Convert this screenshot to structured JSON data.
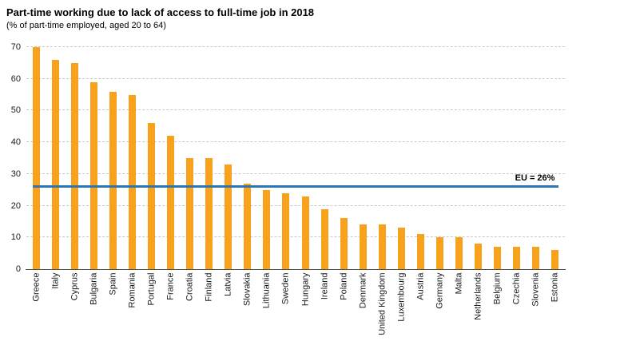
{
  "header": {
    "title": "Part-time working due to lack of access to full-time job in 2018",
    "subtitle": "(% of part-time employed, aged 20 to 64)"
  },
  "chart_data": {
    "type": "bar",
    "title": "Part-time working due to lack of access to full-time job in 2018",
    "subtitle": "(% of part-time employed, aged 20 to 64)",
    "categories": [
      "Greece",
      "Italy",
      "Cyprus",
      "Bulgaria",
      "Spain",
      "Romania",
      "Portugal",
      "France",
      "Croatia",
      "Finland",
      "Latvia",
      "Slovakia",
      "Lithuania",
      "Sweden",
      "Hungary",
      "Ireland",
      "Poland",
      "Denmark",
      "United Kingdom",
      "Luxembourg",
      "Austria",
      "Germany",
      "Malta",
      "Netherlands",
      "Belgium",
      "Czechia",
      "Slovenia",
      "Estonia"
    ],
    "values": [
      70,
      66,
      65,
      59,
      56,
      55,
      46,
      42,
      35,
      35,
      33,
      27,
      25,
      24,
      23,
      19,
      16,
      14,
      14,
      13,
      11,
      10,
      10,
      8,
      7,
      7,
      7,
      6
    ],
    "xlabel": "",
    "ylabel": "",
    "ylim": [
      0,
      70
    ],
    "yticks": [
      0,
      10,
      20,
      30,
      40,
      50,
      60,
      70
    ],
    "grid": "horizontal-dashed",
    "legend": "none",
    "bar_color": "#F8A11D",
    "reference_line": {
      "label": "EU = 26%",
      "value": 26,
      "color": "#2E75B6"
    }
  }
}
